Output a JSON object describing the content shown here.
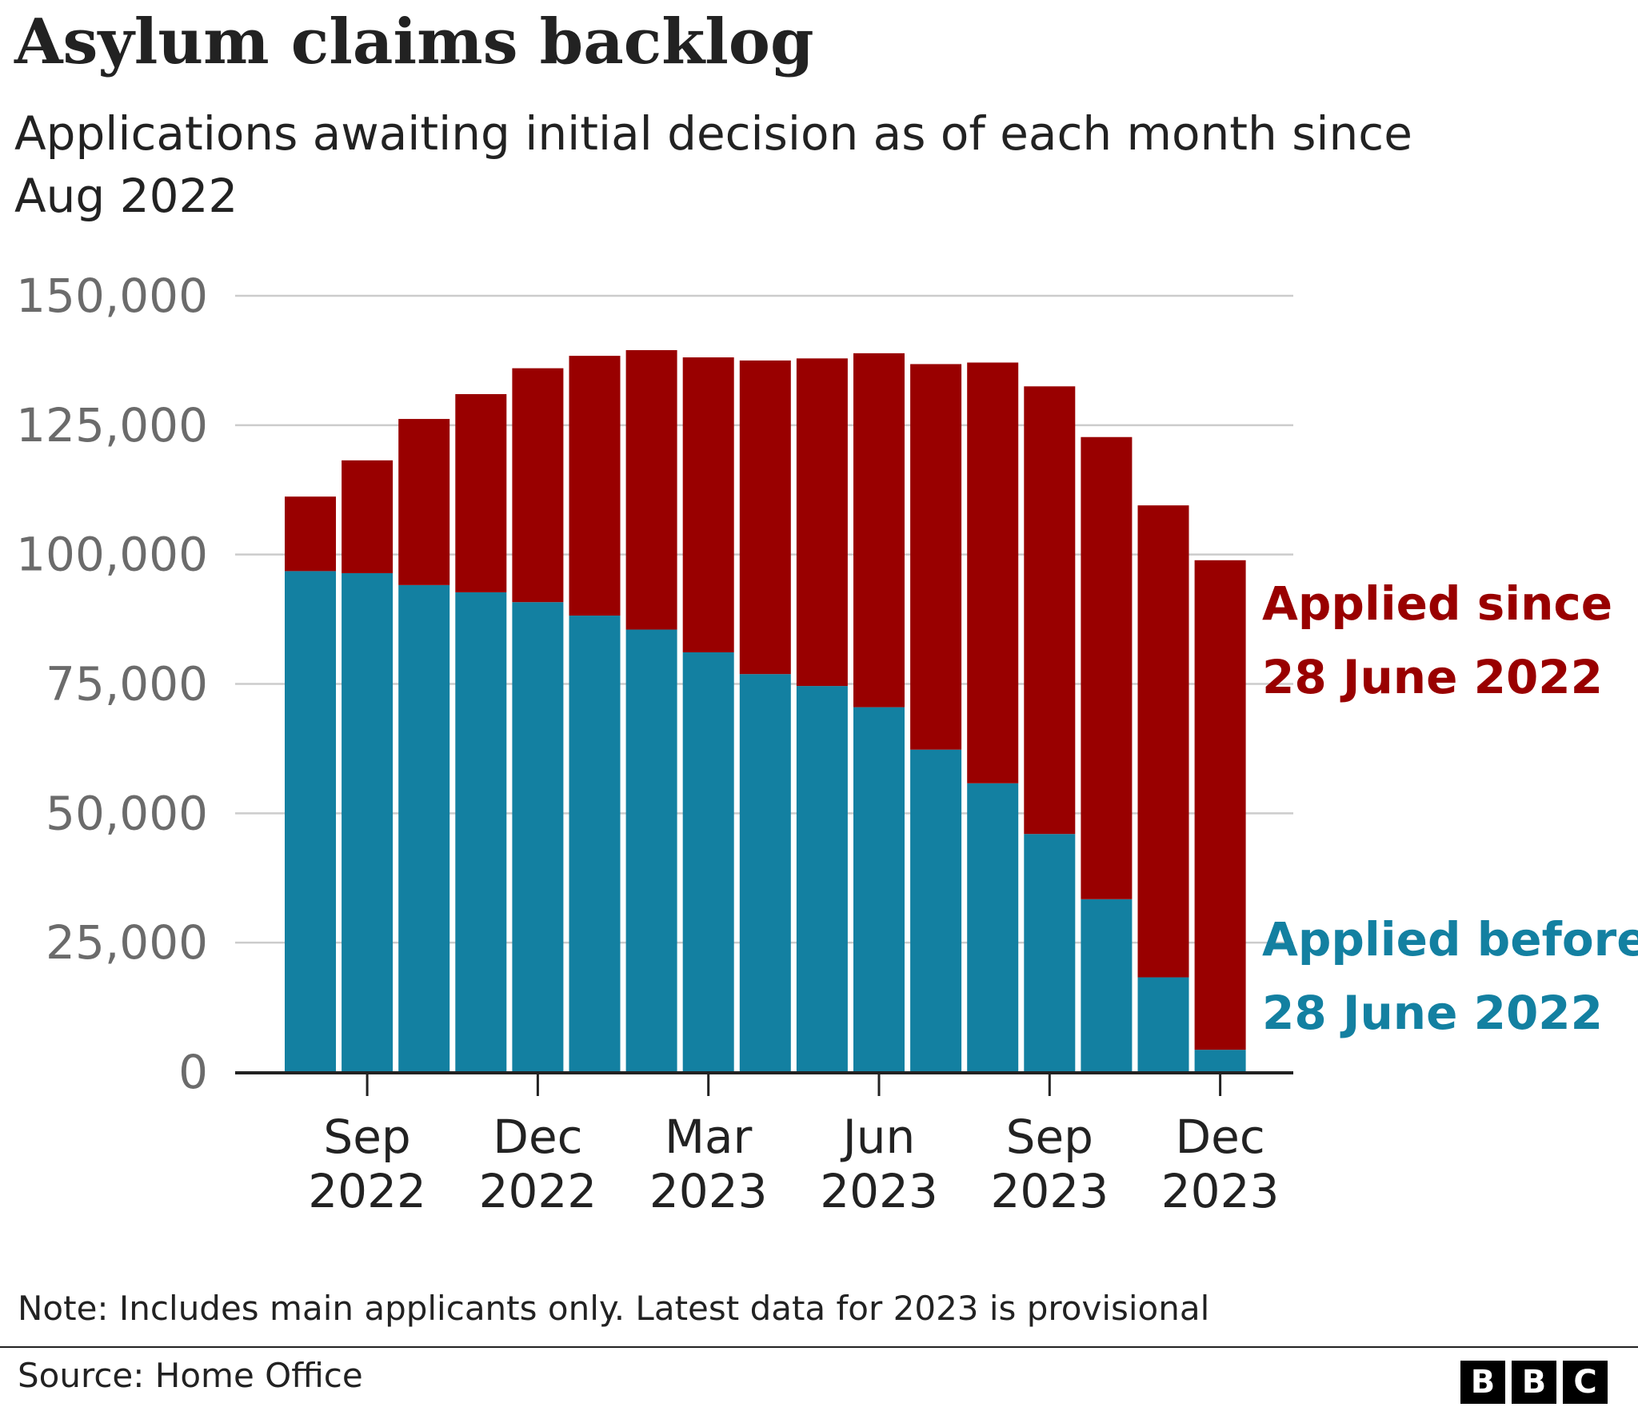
{
  "header": {
    "title": "Asylum claims backlog",
    "subtitle": "Applications awaiting initial decision as of each month since Aug 2022"
  },
  "chart_data": {
    "type": "bar",
    "stacked": true,
    "title": "Asylum claims backlog",
    "subtitle": "Applications awaiting initial decision as of each month since Aug 2022",
    "xlabel": "",
    "ylabel": "",
    "ylim": [
      0,
      150000
    ],
    "yticks": [
      0,
      25000,
      50000,
      75000,
      100000,
      125000,
      150000
    ],
    "ytick_labels": [
      "0",
      "25,000",
      "50,000",
      "75,000",
      "100,000",
      "125,000",
      "150,000"
    ],
    "grid": true,
    "legend": "direct labels on right",
    "categories": [
      "Aug 2022",
      "Sep 2022",
      "Oct 2022",
      "Nov 2022",
      "Dec 2022",
      "Jan 2023",
      "Feb 2023",
      "Mar 2023",
      "Apr 2023",
      "May 2023",
      "Jun 2023",
      "Jul 2023",
      "Aug 2023",
      "Sep 2023",
      "Oct 2023",
      "Nov 2023",
      "Dec 2023"
    ],
    "xtick_labels": [
      {
        "category": "Sep 2022",
        "month": "Sep",
        "year": "2022"
      },
      {
        "category": "Dec 2022",
        "month": "Dec",
        "year": "2022"
      },
      {
        "category": "Mar 2023",
        "month": "Mar",
        "year": "2023"
      },
      {
        "category": "Jun 2023",
        "month": "Jun",
        "year": "2023"
      },
      {
        "category": "Sep 2023",
        "month": "Sep",
        "year": "2023"
      },
      {
        "category": "Dec 2023",
        "month": "Dec",
        "year": "2023"
      }
    ],
    "series": [
      {
        "name": "Applied before 28 June 2022",
        "label_lines": [
          "Applied before",
          "28 June 2022"
        ],
        "color": "#1380a1",
        "values": [
          96800,
          96400,
          94100,
          92700,
          90800,
          88200,
          85500,
          81100,
          76900,
          74600,
          70500,
          62300,
          55800,
          46000,
          33400,
          18300,
          4300
        ]
      },
      {
        "name": "Applied since 28 June 2022",
        "label_lines": [
          "Applied since",
          "28 June 2022"
        ],
        "color": "#990000",
        "values": [
          14400,
          21800,
          32100,
          38300,
          45200,
          50200,
          54000,
          57000,
          60600,
          63300,
          68400,
          74500,
          81300,
          86500,
          89300,
          91200,
          94600
        ]
      }
    ]
  },
  "footer": {
    "note": "Note: Includes main applicants only. Latest data for 2023 is provisional",
    "source": "Source: Home Office",
    "logo_letters": [
      "B",
      "B",
      "C"
    ]
  }
}
